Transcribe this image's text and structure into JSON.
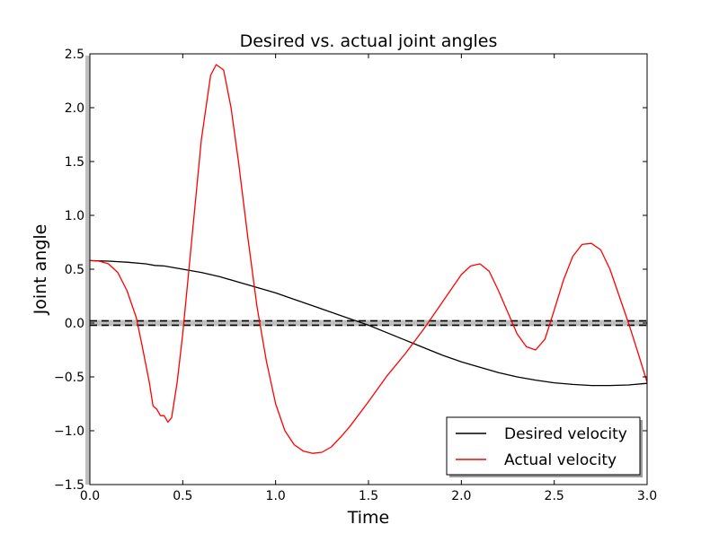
{
  "chart_data": {
    "type": "line",
    "title": "Desired vs. actual joint angles",
    "xlabel": "Time",
    "ylabel": "Joint angle",
    "xlim": [
      0,
      3.0
    ],
    "ylim": [
      -1.5,
      2.5
    ],
    "xticks": [
      "0.0",
      "0.5",
      "1.0",
      "1.5",
      "2.0",
      "2.5",
      "3.0"
    ],
    "yticks": [
      "−1.5",
      "−1.0",
      "−0.5",
      "0.0",
      "0.5",
      "1.0",
      "1.5",
      "2.0",
      "2.5"
    ],
    "grid": false,
    "legend_position": "lower-right",
    "reference_lines": [
      {
        "y": 0.02,
        "style": "dashed",
        "color": "#000000"
      },
      {
        "y": -0.02,
        "style": "dashed",
        "color": "#000000"
      }
    ],
    "band": {
      "from": -0.02,
      "to": 0.02,
      "color": "#bfbfbf"
    },
    "series": [
      {
        "name": "Desired velocity",
        "color": "#000000",
        "x": [
          0,
          0.1,
          0.2,
          0.3,
          0.35,
          0.4,
          0.5,
          0.6,
          0.7,
          0.8,
          0.9,
          1.0,
          1.1,
          1.2,
          1.3,
          1.4,
          1.5,
          1.6,
          1.7,
          1.8,
          1.9,
          2.0,
          2.1,
          2.2,
          2.3,
          2.4,
          2.5,
          2.6,
          2.7,
          2.8,
          2.9,
          3.0
        ],
        "y": [
          0.58,
          0.575,
          0.565,
          0.55,
          0.535,
          0.53,
          0.5,
          0.47,
          0.43,
          0.38,
          0.33,
          0.28,
          0.22,
          0.16,
          0.1,
          0.04,
          -0.02,
          -0.09,
          -0.16,
          -0.23,
          -0.3,
          -0.36,
          -0.41,
          -0.46,
          -0.5,
          -0.53,
          -0.555,
          -0.57,
          -0.58,
          -0.58,
          -0.575,
          -0.56
        ]
      },
      {
        "name": "Actual velocity",
        "color": "#ff0000",
        "x": [
          0,
          0.05,
          0.1,
          0.15,
          0.2,
          0.25,
          0.28,
          0.32,
          0.34,
          0.36,
          0.38,
          0.4,
          0.42,
          0.44,
          0.47,
          0.5,
          0.55,
          0.6,
          0.65,
          0.68,
          0.72,
          0.76,
          0.8,
          0.85,
          0.9,
          0.95,
          1.0,
          1.05,
          1.1,
          1.15,
          1.2,
          1.25,
          1.3,
          1.35,
          1.4,
          1.5,
          1.6,
          1.7,
          1.8,
          1.9,
          2.0,
          2.05,
          2.1,
          2.15,
          2.2,
          2.25,
          2.3,
          2.35,
          2.4,
          2.45,
          2.5,
          2.55,
          2.6,
          2.65,
          2.7,
          2.75,
          2.8,
          2.85,
          2.9,
          2.95,
          3.0
        ],
        "y": [
          0.58,
          0.575,
          0.55,
          0.47,
          0.3,
          0.05,
          -0.2,
          -0.55,
          -0.77,
          -0.8,
          -0.86,
          -0.86,
          -0.92,
          -0.88,
          -0.55,
          -0.1,
          0.8,
          1.7,
          2.3,
          2.4,
          2.35,
          2.0,
          1.5,
          0.8,
          0.15,
          -0.35,
          -0.75,
          -1.0,
          -1.13,
          -1.19,
          -1.21,
          -1.2,
          -1.15,
          -1.06,
          -0.96,
          -0.73,
          -0.49,
          -0.28,
          -0.05,
          0.2,
          0.45,
          0.53,
          0.55,
          0.48,
          0.3,
          0.1,
          -0.1,
          -0.22,
          -0.25,
          -0.15,
          0.12,
          0.4,
          0.62,
          0.73,
          0.74,
          0.68,
          0.5,
          0.25,
          0.0,
          -0.27,
          -0.55
        ]
      }
    ]
  }
}
